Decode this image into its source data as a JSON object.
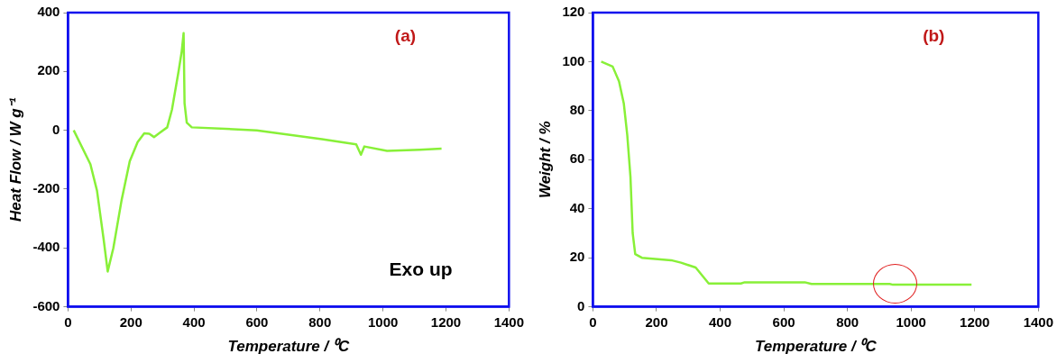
{
  "chart_data": [
    {
      "type": "line",
      "xlabel": "Temperature / ⁰C",
      "ylabel": "Heat Flow / W g⁻¹",
      "annotations": [
        "(a)",
        "Exo up"
      ],
      "series": [
        {
          "color": "#88f038",
          "x": [
            18,
            71,
            92,
            113,
            126,
            144,
            170,
            196,
            221,
            242,
            258,
            273,
            289,
            315,
            330,
            351,
            361,
            367,
            370,
            377,
            393,
            599,
            806,
            915,
            930,
            941,
            1013,
            1117,
            1186
          ],
          "values": [
            0,
            -115,
            -205,
            -370,
            -480,
            -400,
            -238,
            -105,
            -40,
            -10,
            -12,
            -23,
            -10,
            10,
            70,
            200,
            268,
            330,
            92,
            26,
            10,
            0,
            -30,
            -48,
            -83,
            -55,
            -70,
            -66,
            -62
          ]
        }
      ],
      "xlim": [
        0,
        1400
      ],
      "xticks": [
        0,
        200,
        400,
        600,
        800,
        1000,
        1200,
        1400
      ],
      "ylim": [
        -600,
        400
      ],
      "yticks": [
        -600,
        -400,
        -200,
        0,
        200,
        400
      ],
      "grid": false,
      "legend": false,
      "marker": "none",
      "line_style": "solid"
    },
    {
      "type": "line",
      "xlabel": "Temperature / ⁰C",
      "ylabel": "Weight / %",
      "annotations": [
        "(b)"
      ],
      "series": [
        {
          "color": "#88f038",
          "x": [
            26,
            62,
            82,
            97,
            108,
            118,
            125,
            133,
            154,
            246,
            277,
            323,
            364,
            465,
            477,
            666,
            687,
            933,
            943,
            1190
          ],
          "values": [
            100,
            98,
            92,
            83,
            70,
            53,
            30,
            21.5,
            20,
            19,
            18,
            16,
            9.5,
            9.5,
            10,
            10,
            9.3,
            9.3,
            9,
            9
          ]
        }
      ],
      "xlim": [
        0,
        1400
      ],
      "xticks": [
        0,
        200,
        400,
        600,
        800,
        1000,
        1200,
        1400
      ],
      "ylim": [
        0,
        120
      ],
      "yticks": [
        0,
        20,
        40,
        60,
        80,
        100,
        120
      ],
      "grid": false,
      "legend": false,
      "marker": "none",
      "line_style": "solid"
    }
  ]
}
